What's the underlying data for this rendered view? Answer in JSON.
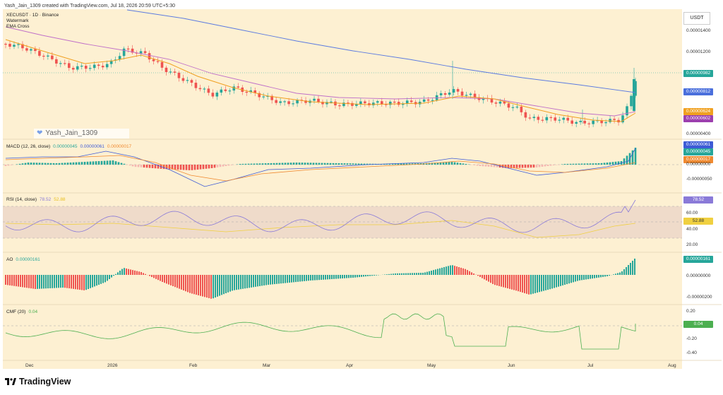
{
  "header": {
    "created": "Yash_Jain_1309 created with TradingView.com, Jul 18, 2026 20:59 UTC+5:30"
  },
  "main_legend": {
    "symbol": "XECUSDT · 1D · Binance",
    "watermark": "Watermark",
    "ema": "EMA Cross"
  },
  "watermark_text": "Yash_Jain_1309",
  "currency_button": "USDT",
  "price_axis": {
    "labels": [
      "0.00001400",
      "0.00001200",
      "0.00000400"
    ],
    "tags": {
      "last": "0.00000982",
      "sma": "0.00000812",
      "ema_fast": "0.00000624",
      "ema_slow": "0.00000602"
    }
  },
  "macd": {
    "label": "MACD (12, 26, close)",
    "v1": "0.00000045",
    "v2": "0.00000061",
    "v3": "0.00000017",
    "tags": [
      "0.00000061",
      "0.00000045",
      "0.00000017"
    ],
    "axis": [
      "0.00000000",
      "-0.00000050"
    ]
  },
  "rsi": {
    "label": "RSI (14, close)",
    "v1": "78.52",
    "v2": "52.88",
    "tags": [
      "78.52",
      "52.88"
    ],
    "axis": [
      "60.00",
      "40.00",
      "20.00"
    ]
  },
  "ao": {
    "label": "AO",
    "v1": "0.00000161",
    "tag": "0.00000161",
    "axis": [
      "0.00000000",
      "-0.00000200"
    ]
  },
  "cmf": {
    "label": "CMF (20)",
    "v1": "0.04",
    "tag": "0.04",
    "axis": [
      "0.20",
      "-0.20",
      "-0.40"
    ]
  },
  "time_axis": [
    "Dec",
    "2026",
    "Feb",
    "Mar",
    "Apr",
    "May",
    "Jun",
    "Jul",
    "Aug"
  ],
  "brand": "TradingView",
  "colors": {
    "bg": "#fdf0d2",
    "up": "#26a69a",
    "down": "#ef5350",
    "sma": "#5b7be0",
    "ema_fast": "#f0a020",
    "ema_slow": "#c070c8",
    "rsi": "#8a7ad8",
    "cmf": "#4caf50"
  }
}
